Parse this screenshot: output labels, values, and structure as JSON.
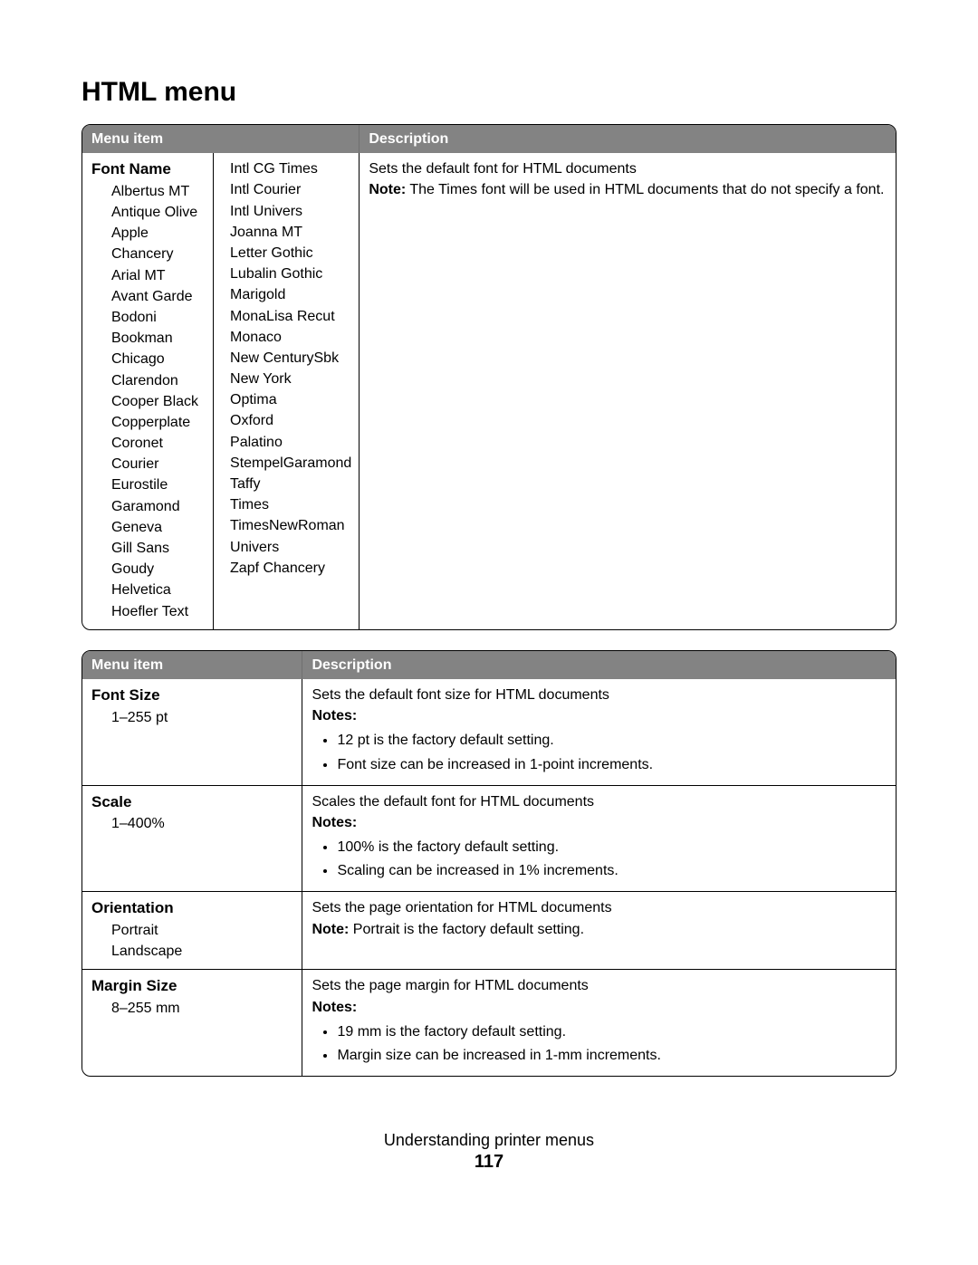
{
  "page_title": "HTML menu",
  "footer_text": "Understanding printer menus",
  "page_number": "117",
  "columns": {
    "menu_item": "Menu item",
    "description": "Description"
  },
  "colors": {
    "header_bg": "#838383",
    "header_fg": "#ffffff",
    "border": "#000000",
    "text": "#000000",
    "background": "#ffffff"
  },
  "table1": {
    "col_widths_pct": [
      17,
      17,
      66
    ],
    "row": {
      "name": "Font Name",
      "fonts_col1": [
        "Albertus MT",
        "Antique Olive",
        "Apple Chancery",
        "Arial MT",
        "Avant Garde",
        "Bodoni",
        "Bookman",
        "Chicago",
        "Clarendon",
        "Cooper Black",
        "Copperplate",
        "Coronet",
        "Courier",
        "Eurostile",
        "Garamond",
        "Geneva",
        "Gill Sans",
        "Goudy",
        "Helvetica",
        "Hoefler Text"
      ],
      "fonts_col2": [
        "Intl CG Times",
        "Intl Courier",
        "Intl Univers",
        "Joanna MT",
        "Letter Gothic",
        "Lubalin Gothic",
        "Marigold",
        "MonaLisa Recut",
        "Monaco",
        "New CenturySbk",
        "New York",
        "Optima",
        "Oxford",
        "Palatino",
        "StempelGaramond",
        "Taffy",
        "Times",
        "TimesNewRoman",
        "Univers",
        "Zapf Chancery"
      ],
      "desc_line": "Sets the default font for HTML documents",
      "note_label": "Note:",
      "note_text": " The Times font will be used in HTML documents that do not specify a font."
    }
  },
  "table2": {
    "col_widths_pct": [
      27,
      73
    ],
    "rows": [
      {
        "name": "Font Size",
        "subs": [
          "1–255 pt"
        ],
        "desc": "Sets the default font size for HTML documents",
        "notes_label": "Notes:",
        "notes": [
          "12 pt is the factory default setting.",
          "Font size can be increased in 1-point increments."
        ]
      },
      {
        "name": "Scale",
        "subs": [
          "1–400%"
        ],
        "desc": "Scales the default font for HTML documents",
        "notes_label": "Notes:",
        "notes": [
          "100% is the factory default setting.",
          "Scaling can be increased in 1% increments."
        ]
      },
      {
        "name": "Orientation",
        "subs": [
          "Portrait",
          "Landscape"
        ],
        "desc": "Sets the page orientation for HTML documents",
        "note_label": "Note:",
        "note_text": " Portrait is the factory default setting."
      },
      {
        "name": "Margin Size",
        "subs": [
          "8–255 mm"
        ],
        "desc": "Sets the page margin for HTML documents",
        "notes_label": "Notes:",
        "notes": [
          "19 mm is the factory default setting.",
          "Margin size can be increased in 1-mm increments."
        ]
      }
    ]
  }
}
